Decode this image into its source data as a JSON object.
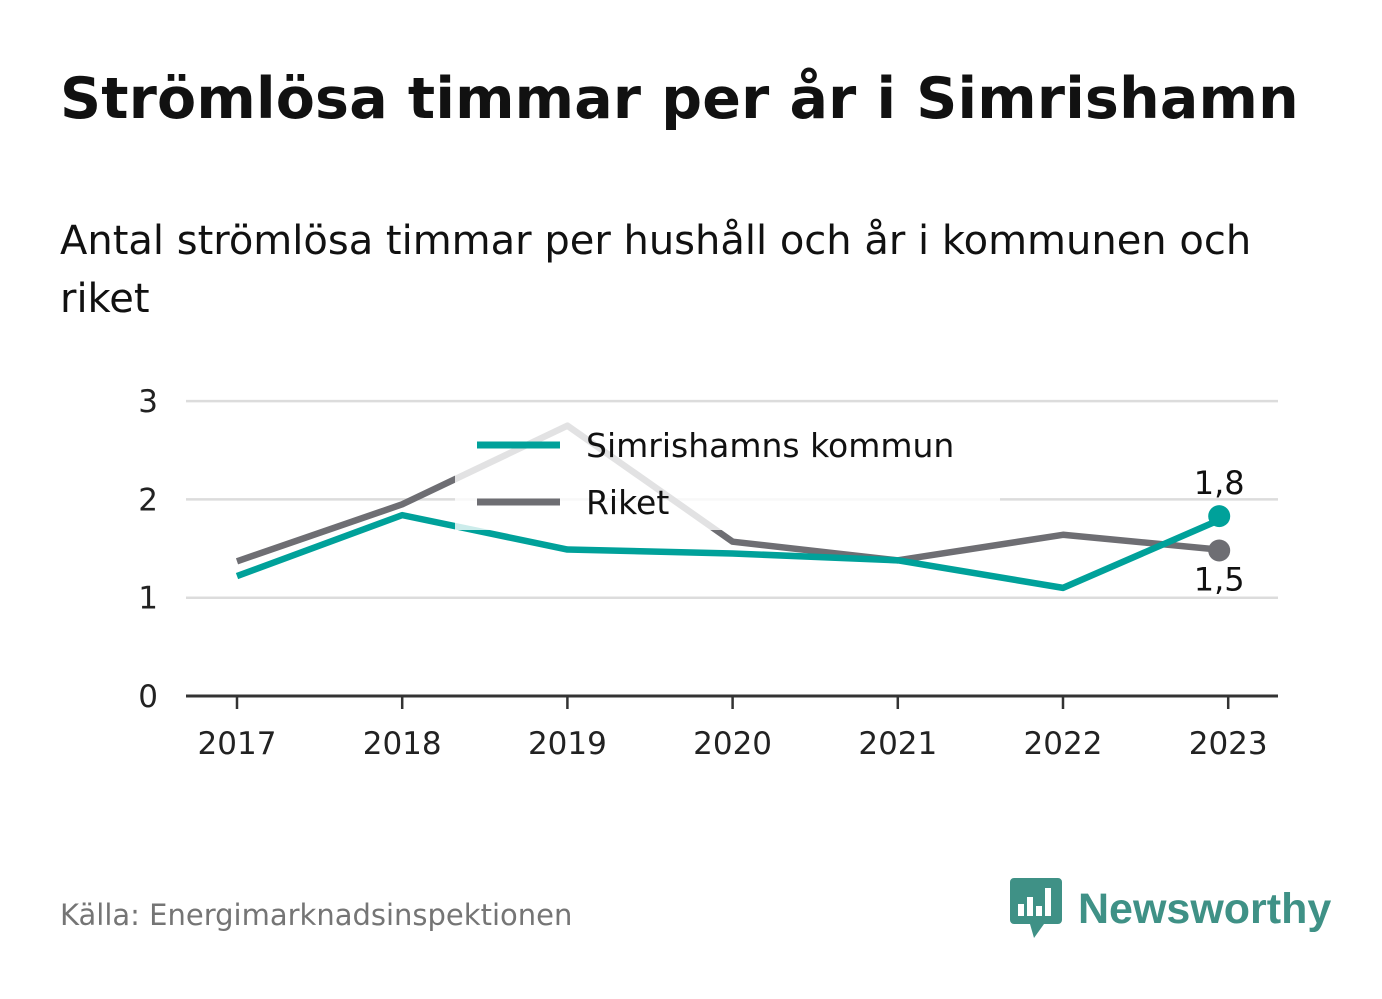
{
  "title": "Strömlösa timmar per år i Simrishamn",
  "subtitle": "Antal strömlösa timmar per hushåll och år i kommunen och riket",
  "source": "Källa: Energimarknadsinspektionen",
  "brand": {
    "name": "Newsworthy",
    "icon": "bar-chart-speech-bubble-icon",
    "color": "#3f9186"
  },
  "chart_data": {
    "type": "line",
    "categories": [
      "2017",
      "2018",
      "2019",
      "2020",
      "2021",
      "2022",
      "2023"
    ],
    "ylim": [
      0,
      3
    ],
    "yticks": [
      "0",
      "1",
      "2",
      "3"
    ],
    "grid": true,
    "legend_position": "top-center",
    "series": [
      {
        "name": "Simrishamns kommun",
        "color": "#00a19a",
        "values": [
          1.22,
          1.84,
          1.49,
          1.45,
          1.38,
          1.1,
          1.83
        ],
        "end_label": "1,8"
      },
      {
        "name": "Riket",
        "color": "#6e6e73",
        "values": [
          1.37,
          1.95,
          2.75,
          1.57,
          1.38,
          1.64,
          1.48
        ],
        "end_label": "1,5"
      }
    ]
  }
}
